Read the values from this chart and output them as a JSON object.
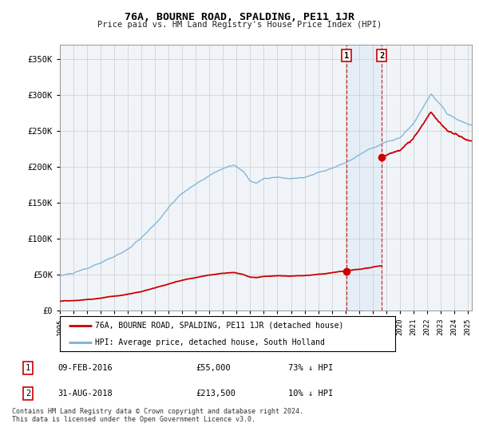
{
  "title": "76A, BOURNE ROAD, SPALDING, PE11 1JR",
  "subtitle": "Price paid vs. HM Land Registry's House Price Index (HPI)",
  "footer": "Contains HM Land Registry data © Crown copyright and database right 2024.\nThis data is licensed under the Open Government Licence v3.0.",
  "legend_entry1": "76A, BOURNE ROAD, SPALDING, PE11 1JR (detached house)",
  "legend_entry2": "HPI: Average price, detached house, South Holland",
  "transaction1_date": "09-FEB-2016",
  "transaction1_price": "£55,000",
  "transaction1_hpi": "73% ↓ HPI",
  "transaction2_date": "31-AUG-2018",
  "transaction2_price": "£213,500",
  "transaction2_hpi": "10% ↓ HPI",
  "property_color": "#cc0000",
  "hpi_color": "#7bafd4",
  "background_color": "#f0f4f8",
  "plot_bg_color": "#f0f4f8",
  "grid_color": "#cccccc",
  "ylim": [
    0,
    370000
  ],
  "yticks": [
    0,
    50000,
    100000,
    150000,
    200000,
    250000,
    300000,
    350000
  ],
  "ytick_labels": [
    "£0",
    "£50K",
    "£100K",
    "£150K",
    "£200K",
    "£250K",
    "£300K",
    "£350K"
  ],
  "transaction1_x": 2016.1,
  "transaction1_y": 55000,
  "transaction2_x": 2018.67,
  "transaction2_y": 213500,
  "vline1_x": 2016.1,
  "vline2_x": 2018.67,
  "xmin": 1995,
  "xmax": 2025.3
}
